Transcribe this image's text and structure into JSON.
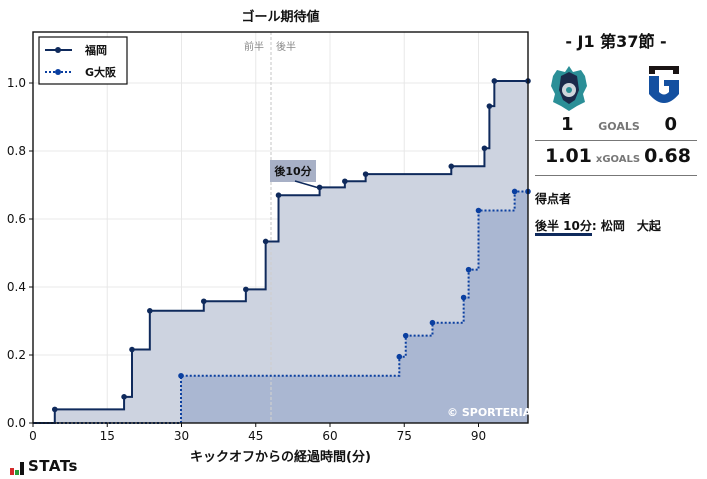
{
  "chart_data": {
    "type": "line",
    "subtype": "step-area",
    "title": "ゴール期待値",
    "xlabel": "キックオフからの経過時間(分)",
    "ylabel": "",
    "xlim": [
      0,
      100
    ],
    "ylim": [
      0,
      1.15
    ],
    "x_ticks": [
      0,
      15,
      30,
      45,
      60,
      75,
      90
    ],
    "y_ticks": [
      0.0,
      0.2,
      0.4,
      0.6,
      0.8,
      1.0
    ],
    "grid": true,
    "legend_position": "upper left",
    "half_divider_x": 48.5,
    "half_labels": [
      "前半",
      "後半"
    ],
    "series": [
      {
        "name": "福岡",
        "style": "solid",
        "color": "#0f2a5c",
        "fill": "#cdd3e0",
        "points": [
          {
            "x": 4.4,
            "y": 0.04
          },
          {
            "x": 18.4,
            "y": 0.077
          },
          {
            "x": 20.0,
            "y": 0.216
          },
          {
            "x": 23.6,
            "y": 0.33
          },
          {
            "x": 34.5,
            "y": 0.358
          },
          {
            "x": 43.0,
            "y": 0.393
          },
          {
            "x": 47.0,
            "y": 0.534
          },
          {
            "x": 49.6,
            "y": 0.67
          },
          {
            "x": 57.9,
            "y": 0.693
          },
          {
            "x": 63.0,
            "y": 0.711
          },
          {
            "x": 67.2,
            "y": 0.732
          },
          {
            "x": 84.5,
            "y": 0.755
          },
          {
            "x": 91.2,
            "y": 0.808
          },
          {
            "x": 92.2,
            "y": 0.932
          },
          {
            "x": 93.2,
            "y": 1.006
          },
          {
            "x": 100.0,
            "y": 1.006
          }
        ]
      },
      {
        "name": "G大阪",
        "style": "dotted",
        "color": "#0a3fa0",
        "fill": "#a3b2cf",
        "points": [
          {
            "x": 29.9,
            "y": 0.139
          },
          {
            "x": 74.0,
            "y": 0.195
          },
          {
            "x": 75.3,
            "y": 0.257
          },
          {
            "x": 80.7,
            "y": 0.295
          },
          {
            "x": 87.0,
            "y": 0.369
          },
          {
            "x": 88.0,
            "y": 0.451
          },
          {
            "x": 90.0,
            "y": 0.625
          },
          {
            "x": 97.3,
            "y": 0.681
          },
          {
            "x": 100.0,
            "y": 0.681
          }
        ]
      }
    ],
    "annotations": [
      {
        "text": "後10分",
        "x": 57.9,
        "y": 0.693
      }
    ]
  },
  "chart": {
    "title": "ゴール期待値",
    "xlabel": "キックオフからの経過時間(分)",
    "legend": [
      {
        "label": "福岡"
      },
      {
        "label": "G大阪"
      }
    ],
    "half_first": "前半",
    "half_second": "後半",
    "annotation": "後10分",
    "copyright": "© SPORTERIA",
    "x_ticks": [
      "0",
      "15",
      "30",
      "45",
      "60",
      "75",
      "90"
    ],
    "y_ticks": [
      "0.0",
      "0.2",
      "0.4",
      "0.6",
      "0.8",
      "1.0"
    ]
  },
  "brand": {
    "stats_logo": "STATs"
  },
  "match": {
    "matchday": "- J1 第37節 -",
    "home_team": "福岡",
    "away_team": "G大阪",
    "home_goals": "1",
    "away_goals": "0",
    "goals_label": "GOALS",
    "home_xg": "1.01",
    "away_xg": "0.68",
    "xg_label": "xGOALS",
    "scorers_title": "得点者",
    "scorers": [
      {
        "time": "後半 10分",
        "separator": ":",
        "name": "松岡　大起"
      }
    ]
  }
}
